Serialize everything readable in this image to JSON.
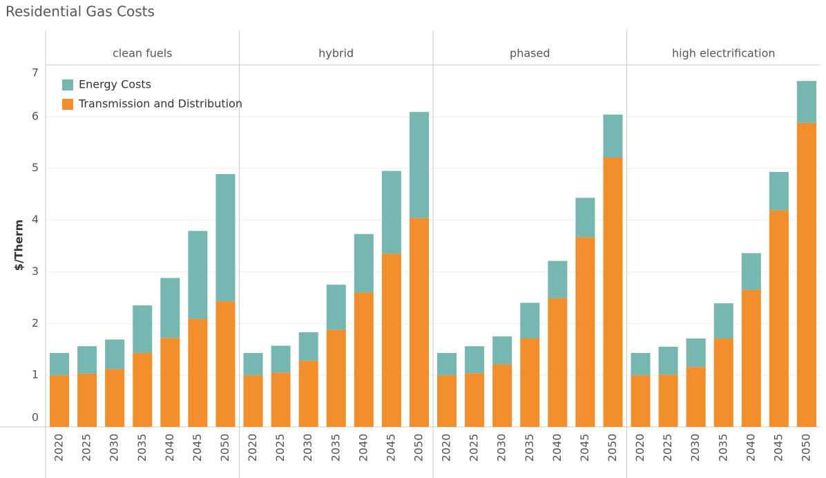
{
  "chart_data": {
    "type": "bar",
    "stacked": true,
    "title": "Residential Gas Costs",
    "y_label": "$/Therm",
    "facets": [
      "clean fuels",
      "hybrid",
      "phased",
      "high electrification"
    ],
    "categories": [
      "2020",
      "2025",
      "2030",
      "2035",
      "2040",
      "2045",
      "2050"
    ],
    "series": [
      {
        "name": "Energy Costs",
        "color": "#76b7b2",
        "values": [
          [
            0.43,
            0.53,
            0.57,
            0.92,
            1.16,
            1.7,
            2.46
          ],
          [
            0.43,
            0.52,
            0.55,
            0.87,
            1.13,
            1.6,
            2.05
          ],
          [
            0.43,
            0.52,
            0.54,
            0.69,
            0.72,
            0.76,
            0.83
          ],
          [
            0.43,
            0.54,
            0.55,
            0.68,
            0.71,
            0.74,
            0.81
          ]
        ]
      },
      {
        "name": "Transmission and Distribution",
        "color": "#f28e2b",
        "values": [
          [
            1.0,
            1.03,
            1.12,
            1.43,
            1.72,
            2.09,
            2.43
          ],
          [
            1.0,
            1.05,
            1.28,
            1.88,
            2.6,
            3.35,
            4.04
          ],
          [
            1.0,
            1.04,
            1.21,
            1.71,
            2.49,
            3.67,
            5.21
          ],
          [
            1.0,
            1.01,
            1.16,
            1.71,
            2.65,
            4.19,
            5.88
          ]
        ]
      }
    ],
    "ylim": [
      0,
      7
    ],
    "yticks": [
      0,
      1,
      2,
      3,
      4,
      5,
      6,
      7
    ],
    "grid": true,
    "legend": "top-left"
  }
}
